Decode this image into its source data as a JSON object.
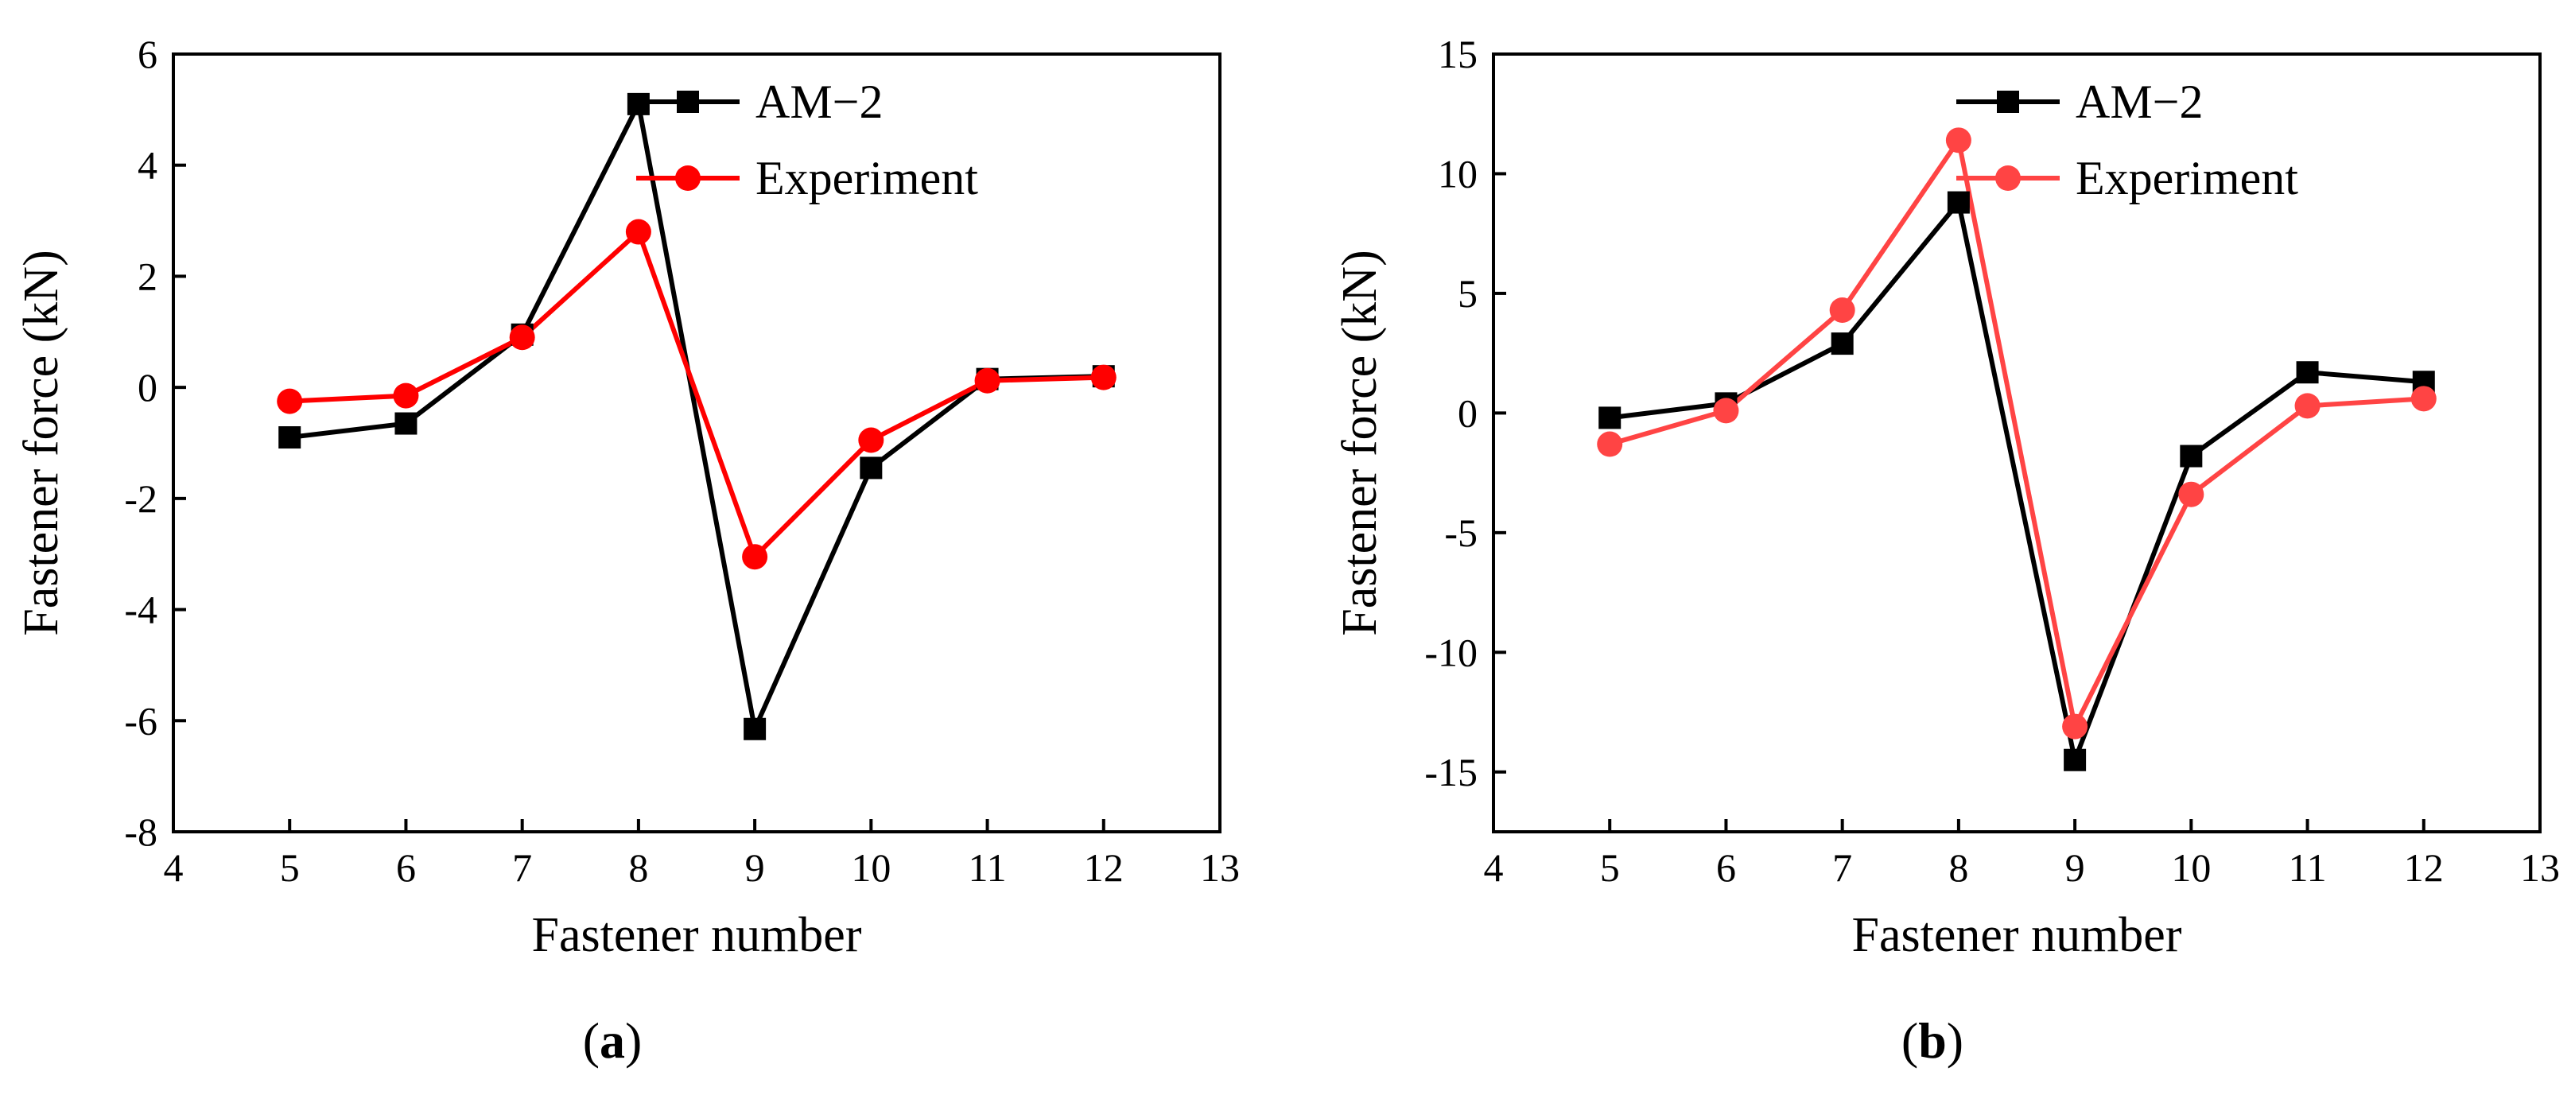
{
  "chart_data": [
    {
      "id": "a",
      "type": "line",
      "caption": {
        "open": "(",
        "letter": "a",
        "close": ")"
      },
      "xlabel": "Fastener number",
      "ylabel": "Fastener force (kN)",
      "xlim": [
        4,
        13
      ],
      "ylim": [
        -8,
        6
      ],
      "xticks": [
        4,
        5,
        6,
        7,
        8,
        9,
        10,
        11,
        12,
        13
      ],
      "yticks": [
        -8,
        -6,
        -4,
        -2,
        0,
        2,
        4,
        6
      ],
      "legend_position": "top-right",
      "series": [
        {
          "name": "AM−2",
          "marker": "square",
          "color": "#000000",
          "x": [
            5,
            6,
            7,
            8,
            9,
            10,
            11,
            12
          ],
          "y": [
            -0.9,
            -0.65,
            0.95,
            5.1,
            -6.15,
            -1.45,
            0.15,
            0.2
          ]
        },
        {
          "name": "Experiment",
          "marker": "circle",
          "color": "#ff0000",
          "x": [
            5,
            6,
            7,
            8,
            9,
            10,
            11,
            12
          ],
          "y": [
            -0.25,
            -0.15,
            0.9,
            2.8,
            -3.05,
            -0.95,
            0.12,
            0.18
          ]
        }
      ]
    },
    {
      "id": "b",
      "type": "line",
      "caption": {
        "open": "(",
        "letter": "b",
        "close": ")"
      },
      "xlabel": "Fastener number",
      "ylabel": "Fastener force (kN)",
      "xlim": [
        4,
        13
      ],
      "ylim": [
        -17.5,
        15
      ],
      "xticks": [
        4,
        5,
        6,
        7,
        8,
        9,
        10,
        11,
        12,
        13
      ],
      "yticks": [
        -15,
        -10,
        -5,
        0,
        5,
        10,
        15
      ],
      "legend_position": "top-right",
      "series": [
        {
          "name": "AM−2",
          "marker": "square",
          "color": "#000000",
          "x": [
            5,
            6,
            7,
            8,
            9,
            10,
            11,
            12
          ],
          "y": [
            -0.2,
            0.4,
            2.9,
            8.8,
            -14.5,
            -1.8,
            1.7,
            1.3
          ]
        },
        {
          "name": "Experiment",
          "marker": "circle",
          "color": "#ff4444",
          "x": [
            5,
            6,
            7,
            8,
            9,
            10,
            11,
            12
          ],
          "y": [
            -1.3,
            0.1,
            4.3,
            11.4,
            -13.1,
            -3.4,
            0.3,
            0.6
          ]
        }
      ]
    }
  ]
}
